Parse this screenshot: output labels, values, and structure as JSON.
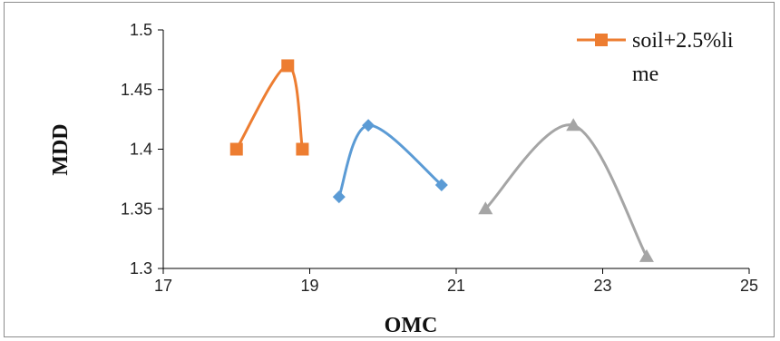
{
  "chart_data": {
    "type": "scatter",
    "xlabel": "OMC",
    "ylabel": "MDD",
    "xlim": [
      17,
      25
    ],
    "ylim": [
      1.3,
      1.5
    ],
    "x_ticks": [
      "17",
      "19",
      "21",
      "23",
      "25"
    ],
    "y_ticks": [
      "1.3",
      "1.35",
      "1.4",
      "1.45",
      "1.5"
    ],
    "legend_position": "top-right",
    "legend_lines": [
      "soil+2.5%li",
      "me"
    ],
    "grid": false,
    "series": [
      {
        "name": "soil+2.5%lime",
        "color": "#ED7D31",
        "marker": "square",
        "smooth": true,
        "points": [
          [
            18.0,
            1.4
          ],
          [
            18.7,
            1.47
          ],
          [
            18.9,
            1.4
          ]
        ]
      },
      {
        "color": "#5B9BD5",
        "marker": "diamond",
        "smooth": true,
        "points": [
          [
            19.4,
            1.36
          ],
          [
            19.8,
            1.42
          ],
          [
            20.8,
            1.37
          ]
        ]
      },
      {
        "color": "#A5A5A5",
        "marker": "triangle",
        "smooth": true,
        "points": [
          [
            21.4,
            1.35
          ],
          [
            22.6,
            1.42
          ],
          [
            23.6,
            1.31
          ]
        ]
      }
    ]
  }
}
